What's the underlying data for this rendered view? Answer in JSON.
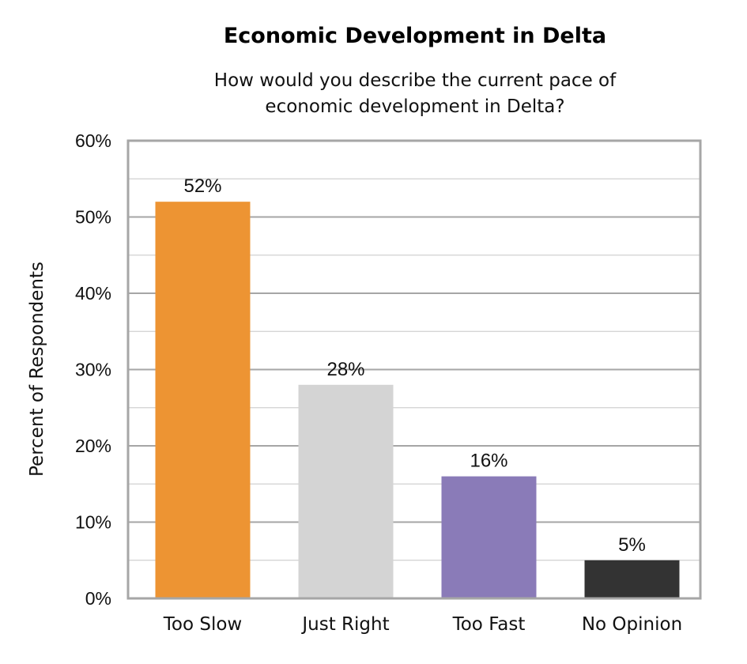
{
  "chart_data": {
    "type": "bar",
    "title": "Economic Development in Delta",
    "subtitle_lines": [
      "How would you describe the current pace of",
      "economic development in Delta?"
    ],
    "xlabel": "",
    "ylabel": "Percent of Respondents",
    "ylim": [
      0,
      60
    ],
    "yticks": [
      0,
      10,
      20,
      30,
      40,
      50,
      60
    ],
    "ytick_labels": [
      "0%",
      "10%",
      "20%",
      "30%",
      "40%",
      "50%",
      "60%"
    ],
    "minor_grid_step": 5,
    "grid": true,
    "categories": [
      "Too Slow",
      "Just Right",
      "Too Fast",
      "No Opinion"
    ],
    "values": [
      52,
      28,
      16,
      5
    ],
    "data_labels": [
      "52%",
      "28%",
      "16%",
      "5%"
    ],
    "colors": [
      "#ED9433",
      "#D4D4D4",
      "#8A7BB8",
      "#333333"
    ],
    "grid_colors": {
      "major": "#A6A6A6",
      "minor": "#D0D0D0",
      "frame": "#A6A6A6"
    }
  }
}
